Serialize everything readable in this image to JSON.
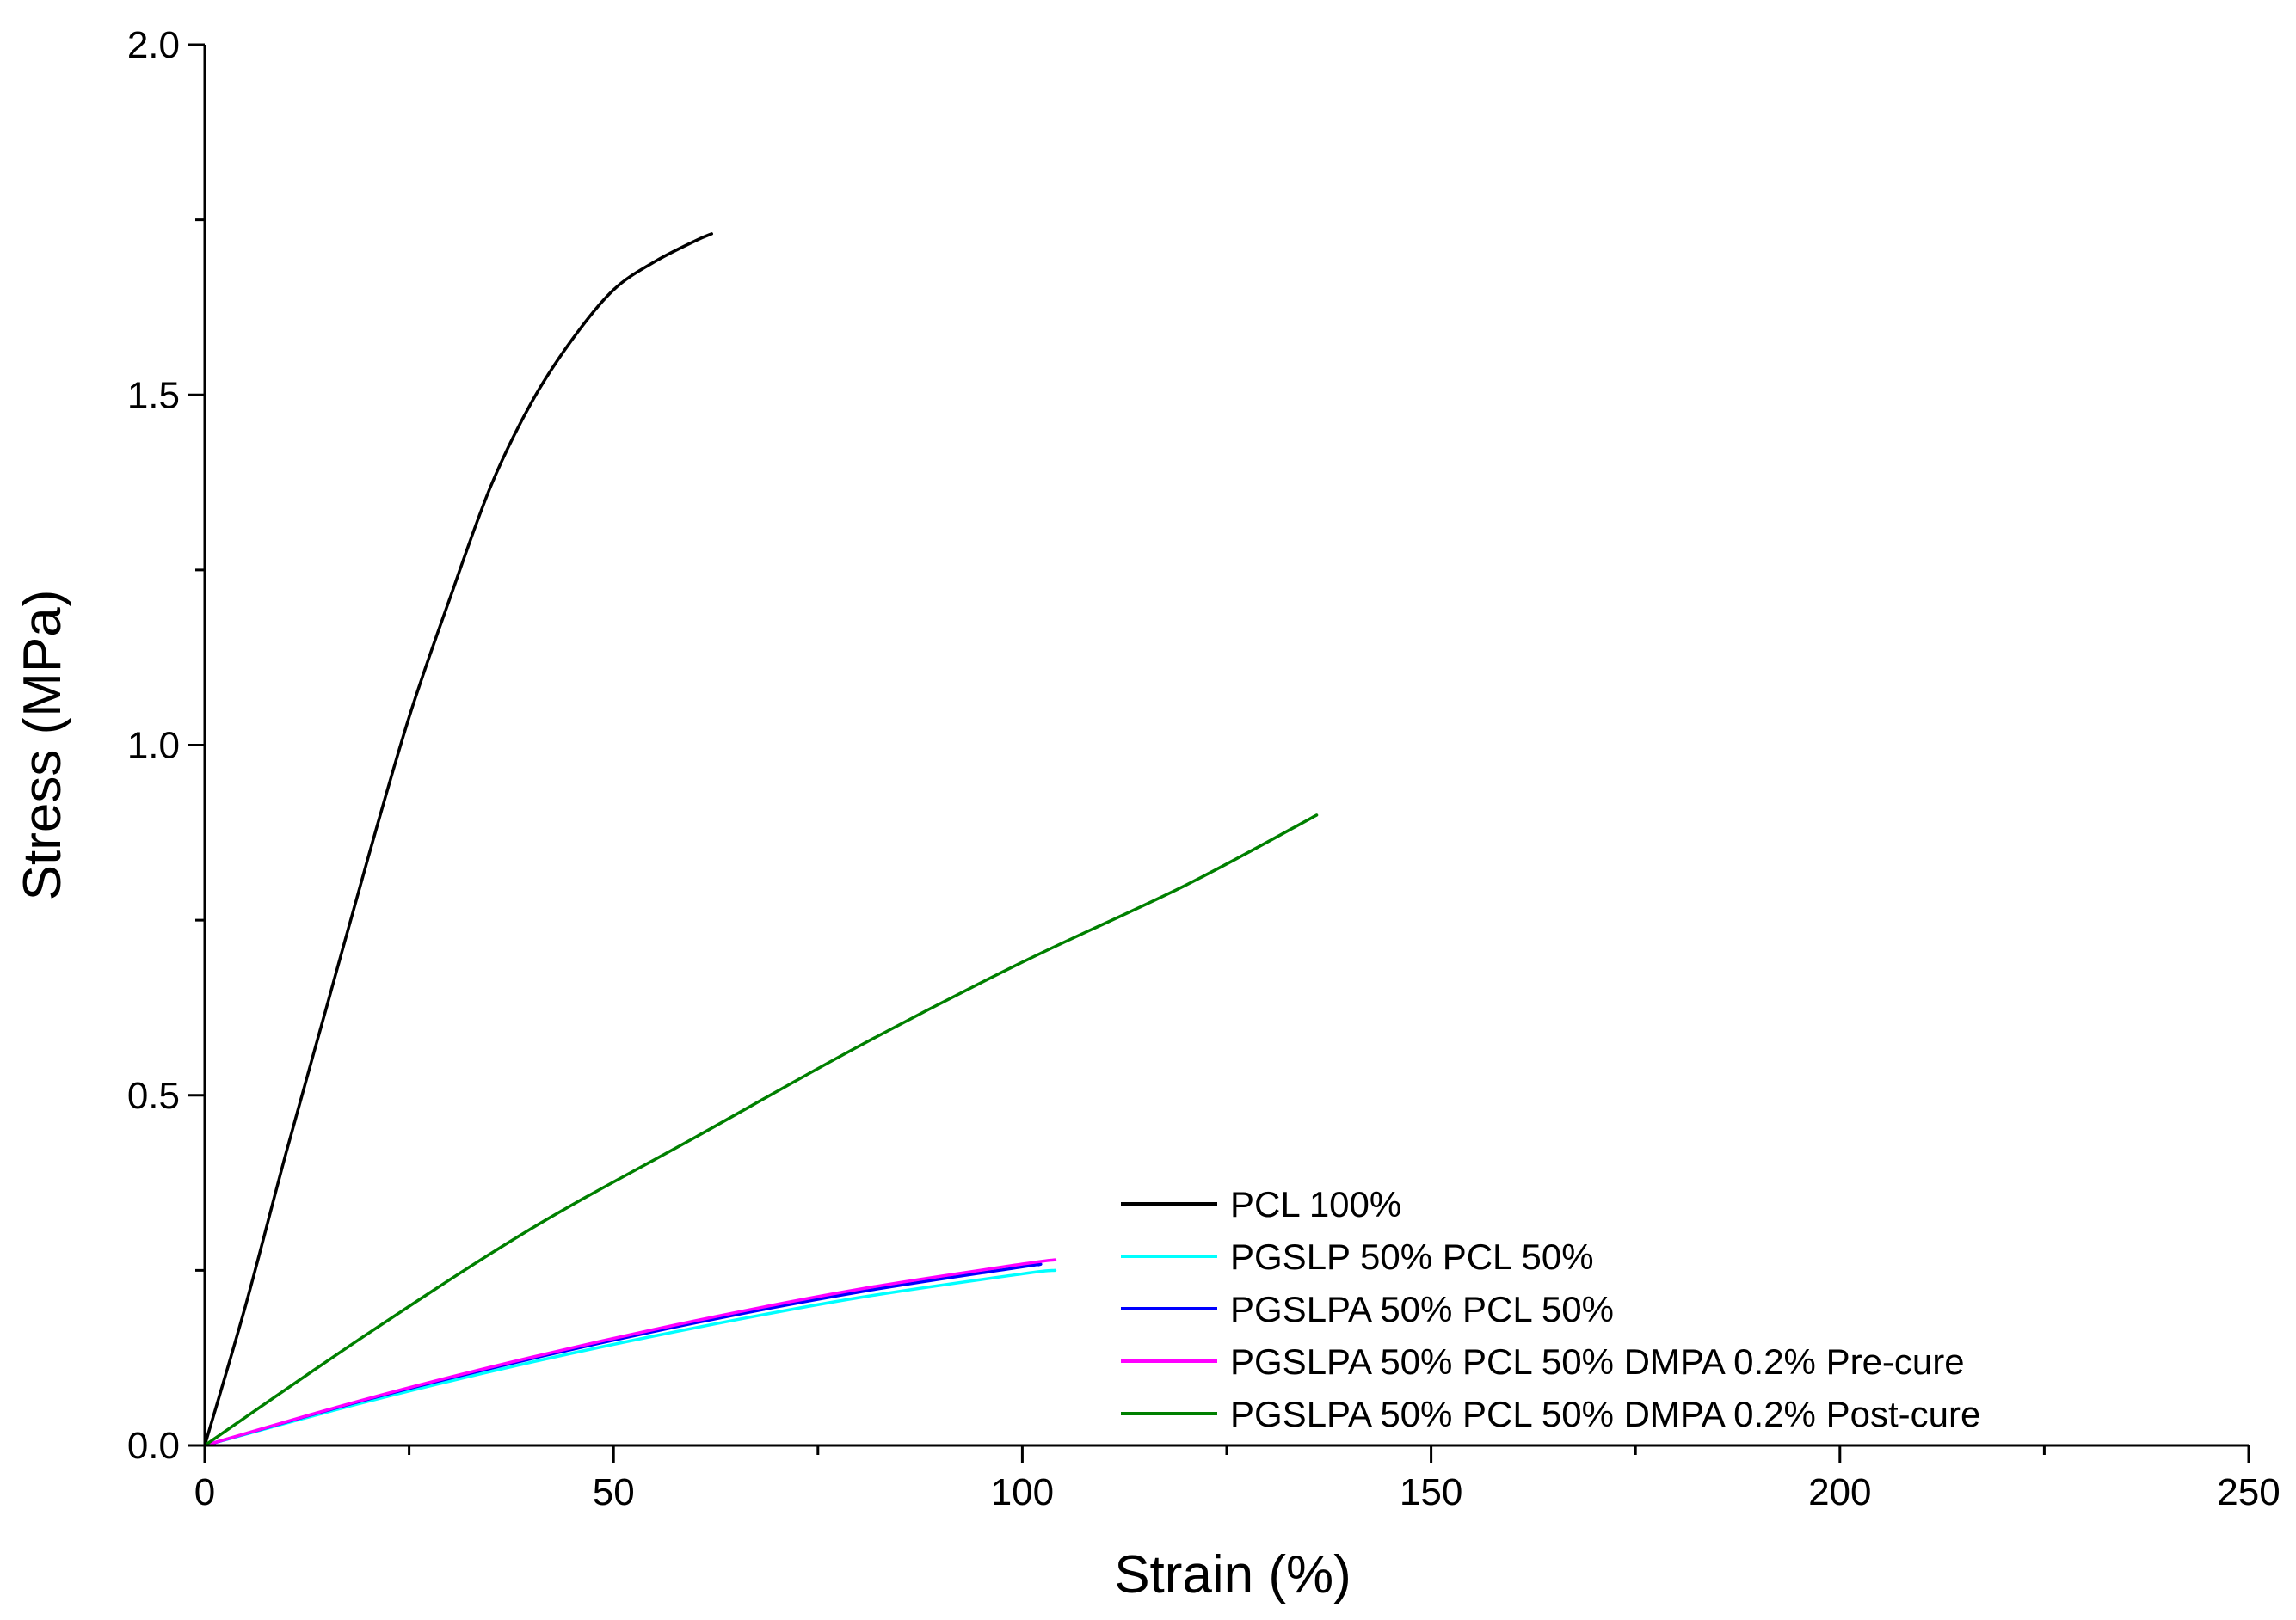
{
  "chart_data": {
    "type": "line",
    "title": "",
    "xlabel": "Strain (%)",
    "ylabel": "Stress (MPa)",
    "xlim": [
      0,
      250
    ],
    "ylim": [
      0,
      2.0
    ],
    "xticks": [
      0,
      50,
      100,
      150,
      200,
      250
    ],
    "xtick_labels": [
      "0",
      "50",
      "100",
      "150",
      "200",
      "250"
    ],
    "xminor": [
      25,
      75,
      125,
      175,
      225
    ],
    "yticks": [
      0,
      0.5,
      1.0,
      1.5,
      2.0
    ],
    "ytick_labels": [
      "0.0",
      "0.5",
      "1.0",
      "1.5",
      "2.0"
    ],
    "yminor": [
      0.25,
      0.75,
      1.25,
      1.75
    ],
    "grid": false,
    "legend_position": "bottom-right",
    "series": [
      {
        "name": "PCL 100%",
        "color": "#000000",
        "x": [
          0,
          5,
          10,
          15,
          20,
          25,
          30,
          35,
          40,
          45,
          50,
          55,
          60,
          62
        ],
        "y": [
          0,
          0.2,
          0.42,
          0.63,
          0.84,
          1.04,
          1.21,
          1.37,
          1.49,
          1.58,
          1.65,
          1.69,
          1.72,
          1.73
        ]
      },
      {
        "name": "PGSLP 50% PCL 50%",
        "color": "#00FFFF",
        "x": [
          0,
          20,
          40,
          60,
          80,
          100,
          104
        ],
        "y": [
          0,
          0.063,
          0.119,
          0.168,
          0.211,
          0.245,
          0.25
        ]
      },
      {
        "name": "PGSLPA 50% PCL 50%",
        "color": "#0000FF",
        "x": [
          0,
          20,
          40,
          60,
          80,
          100,
          102
        ],
        "y": [
          0,
          0.066,
          0.124,
          0.175,
          0.219,
          0.255,
          0.258
        ]
      },
      {
        "name": "PGSLPA 50% PCL 50% DMPA 0.2% Pre-cure",
        "color": "#FF00FF",
        "x": [
          0,
          20,
          40,
          60,
          80,
          100,
          104
        ],
        "y": [
          0,
          0.067,
          0.126,
          0.178,
          0.223,
          0.259,
          0.265
        ]
      },
      {
        "name": "PGSLPA 50% PCL 50% DMPA 0.2% Post-cure",
        "color": "#008000",
        "x": [
          0,
          20,
          40,
          60,
          80,
          100,
          120,
          136
        ],
        "y": [
          0,
          0.16,
          0.31,
          0.44,
          0.57,
          0.69,
          0.8,
          0.9
        ]
      }
    ]
  }
}
